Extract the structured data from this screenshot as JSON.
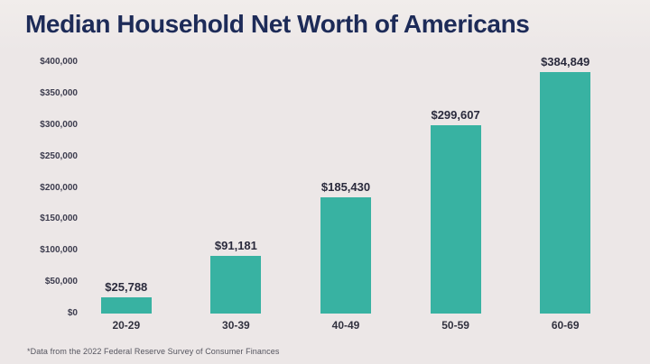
{
  "chart": {
    "title": "Median Household Net Worth of Americans",
    "footnote": "*Data from the 2022 Federal Reserve Survey of Consumer Finances"
  },
  "colors": {
    "background": "#ECE7E7",
    "background_top": "#F1EDEB",
    "bar": "#38B2A2",
    "title_text": "#1D2B58",
    "axis_text": "#3C3C4E",
    "value_label_text": "#2A2A3C"
  },
  "chart_data": {
    "type": "bar",
    "title": "Median Household Net Worth of Americans",
    "categories": [
      "20-29",
      "30-39",
      "40-49",
      "50-59",
      "60-69"
    ],
    "values": [
      25788,
      91181,
      185430,
      299607,
      384849
    ],
    "value_labels": [
      "$25,788",
      "$91,181",
      "$185,430",
      "$299,607",
      "$384,849"
    ],
    "xlabel": "",
    "ylabel": "",
    "ylim": [
      0,
      400000
    ],
    "yticks": [
      0,
      50000,
      100000,
      150000,
      200000,
      250000,
      300000,
      350000,
      400000
    ],
    "ytick_labels": [
      "$0",
      "$50,000",
      "$100,000",
      "$150,000",
      "$200,000",
      "$250,000",
      "$300,000",
      "$350,000",
      "$400,000"
    ],
    "grid": false,
    "legend": false,
    "annotation": "*Data from the 2022 Federal Reserve Survey of Consumer Finances"
  }
}
